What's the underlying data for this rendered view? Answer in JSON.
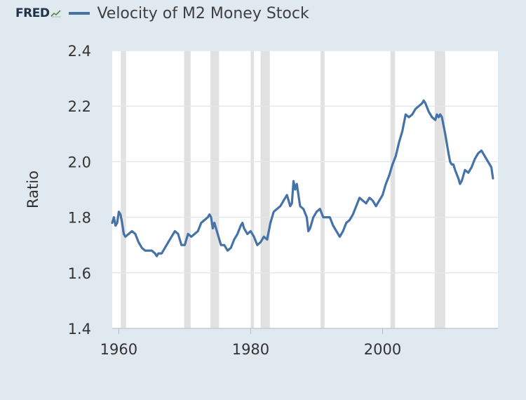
{
  "brand": {
    "logo_text": "FRED",
    "logo_icon": "fred-chart-icon"
  },
  "colors": {
    "series": "#4572a7",
    "background": "#e1e9f0",
    "plot": "#ffffff",
    "recession": "#e1e1e1",
    "grid": "#e1e9f0"
  },
  "chart_data": {
    "type": "line",
    "title": "",
    "xlabel": "",
    "ylabel": "Ratio",
    "xlim": [
      1959.0,
      2017.5
    ],
    "ylim": [
      1.4,
      2.4
    ],
    "grid": true,
    "legend_position": "top-left",
    "x_ticks": [
      1960,
      1980,
      2000
    ],
    "x_tick_labels": [
      "1960",
      "1980",
      "2000"
    ],
    "y_ticks": [
      1.4,
      1.6,
      1.8,
      2.0,
      2.2,
      2.4
    ],
    "y_tick_labels": [
      "1.4",
      "1.6",
      "1.8",
      "2.0",
      "2.2",
      "2.4"
    ],
    "recessions": [
      [
        1960.3,
        1961.1
      ],
      [
        1969.9,
        1970.9
      ],
      [
        1973.9,
        1975.2
      ],
      [
        1980.0,
        1980.5
      ],
      [
        1981.5,
        1982.9
      ],
      [
        1990.6,
        1991.2
      ],
      [
        2001.2,
        2001.9
      ],
      [
        2007.9,
        2009.5
      ]
    ],
    "series": [
      {
        "name": "Velocity of M2 Money Stock",
        "color": "#4572a7",
        "points": [
          [
            1959.0,
            1.78
          ],
          [
            1959.25,
            1.8
          ],
          [
            1959.5,
            1.77
          ],
          [
            1959.75,
            1.78
          ],
          [
            1960.0,
            1.82
          ],
          [
            1960.25,
            1.81
          ],
          [
            1960.5,
            1.78
          ],
          [
            1960.75,
            1.74
          ],
          [
            1961.0,
            1.73
          ],
          [
            1961.5,
            1.74
          ],
          [
            1962.0,
            1.75
          ],
          [
            1962.5,
            1.74
          ],
          [
            1963.0,
            1.71
          ],
          [
            1963.5,
            1.69
          ],
          [
            1964.0,
            1.68
          ],
          [
            1964.5,
            1.68
          ],
          [
            1965.0,
            1.68
          ],
          [
            1965.5,
            1.67
          ],
          [
            1965.75,
            1.66
          ],
          [
            1966.0,
            1.67
          ],
          [
            1966.5,
            1.67
          ],
          [
            1967.0,
            1.69
          ],
          [
            1967.5,
            1.71
          ],
          [
            1968.0,
            1.73
          ],
          [
            1968.5,
            1.75
          ],
          [
            1969.0,
            1.74
          ],
          [
            1969.5,
            1.7
          ],
          [
            1970.0,
            1.7
          ],
          [
            1970.5,
            1.74
          ],
          [
            1971.0,
            1.73
          ],
          [
            1971.5,
            1.74
          ],
          [
            1972.0,
            1.75
          ],
          [
            1972.5,
            1.78
          ],
          [
            1973.0,
            1.79
          ],
          [
            1973.5,
            1.8
          ],
          [
            1973.75,
            1.81
          ],
          [
            1974.0,
            1.8
          ],
          [
            1974.25,
            1.76
          ],
          [
            1974.5,
            1.78
          ],
          [
            1975.0,
            1.74
          ],
          [
            1975.5,
            1.7
          ],
          [
            1976.0,
            1.7
          ],
          [
            1976.5,
            1.68
          ],
          [
            1977.0,
            1.69
          ],
          [
            1977.5,
            1.72
          ],
          [
            1978.0,
            1.74
          ],
          [
            1978.5,
            1.77
          ],
          [
            1978.75,
            1.78
          ],
          [
            1979.0,
            1.76
          ],
          [
            1979.5,
            1.74
          ],
          [
            1980.0,
            1.75
          ],
          [
            1980.5,
            1.73
          ],
          [
            1981.0,
            1.7
          ],
          [
            1981.5,
            1.71
          ],
          [
            1982.0,
            1.73
          ],
          [
            1982.5,
            1.72
          ],
          [
            1983.0,
            1.78
          ],
          [
            1983.5,
            1.82
          ],
          [
            1984.0,
            1.83
          ],
          [
            1984.5,
            1.84
          ],
          [
            1985.0,
            1.86
          ],
          [
            1985.5,
            1.88
          ],
          [
            1985.75,
            1.86
          ],
          [
            1986.0,
            1.84
          ],
          [
            1986.25,
            1.85
          ],
          [
            1986.5,
            1.93
          ],
          [
            1986.75,
            1.9
          ],
          [
            1987.0,
            1.92
          ],
          [
            1987.5,
            1.84
          ],
          [
            1988.0,
            1.83
          ],
          [
            1988.5,
            1.8
          ],
          [
            1988.75,
            1.75
          ],
          [
            1989.0,
            1.76
          ],
          [
            1989.5,
            1.8
          ],
          [
            1990.0,
            1.82
          ],
          [
            1990.5,
            1.83
          ],
          [
            1991.0,
            1.8
          ],
          [
            1991.5,
            1.8
          ],
          [
            1992.0,
            1.8
          ],
          [
            1992.5,
            1.77
          ],
          [
            1993.0,
            1.75
          ],
          [
            1993.5,
            1.73
          ],
          [
            1994.0,
            1.75
          ],
          [
            1994.5,
            1.78
          ],
          [
            1995.0,
            1.79
          ],
          [
            1995.5,
            1.81
          ],
          [
            1996.0,
            1.84
          ],
          [
            1996.5,
            1.87
          ],
          [
            1997.0,
            1.86
          ],
          [
            1997.5,
            1.85
          ],
          [
            1998.0,
            1.87
          ],
          [
            1998.5,
            1.86
          ],
          [
            1999.0,
            1.84
          ],
          [
            1999.5,
            1.86
          ],
          [
            2000.0,
            1.88
          ],
          [
            2000.5,
            1.92
          ],
          [
            2001.0,
            1.95
          ],
          [
            2001.5,
            1.99
          ],
          [
            2002.0,
            2.02
          ],
          [
            2002.5,
            2.07
          ],
          [
            2003.0,
            2.11
          ],
          [
            2003.5,
            2.17
          ],
          [
            2004.0,
            2.16
          ],
          [
            2004.5,
            2.17
          ],
          [
            2005.0,
            2.19
          ],
          [
            2005.5,
            2.2
          ],
          [
            2006.0,
            2.21
          ],
          [
            2006.25,
            2.22
          ],
          [
            2006.5,
            2.21
          ],
          [
            2007.0,
            2.18
          ],
          [
            2007.5,
            2.16
          ],
          [
            2008.0,
            2.15
          ],
          [
            2008.25,
            2.17
          ],
          [
            2008.5,
            2.16
          ],
          [
            2008.75,
            2.17
          ],
          [
            2009.0,
            2.16
          ],
          [
            2009.5,
            2.1
          ],
          [
            2010.0,
            2.03
          ],
          [
            2010.25,
            2.0
          ],
          [
            2010.5,
            1.99
          ],
          [
            2010.75,
            1.99
          ],
          [
            2011.0,
            1.97
          ],
          [
            2011.5,
            1.94
          ],
          [
            2011.75,
            1.92
          ],
          [
            2012.0,
            1.93
          ],
          [
            2012.5,
            1.97
          ],
          [
            2013.0,
            1.96
          ],
          [
            2013.5,
            1.98
          ],
          [
            2014.0,
            2.01
          ],
          [
            2014.5,
            2.03
          ],
          [
            2015.0,
            2.04
          ],
          [
            2015.25,
            2.03
          ],
          [
            2015.5,
            2.02
          ],
          [
            2016.0,
            2.0
          ],
          [
            2016.5,
            1.98
          ],
          [
            2016.75,
            1.94
          ]
        ]
      }
    ]
  }
}
